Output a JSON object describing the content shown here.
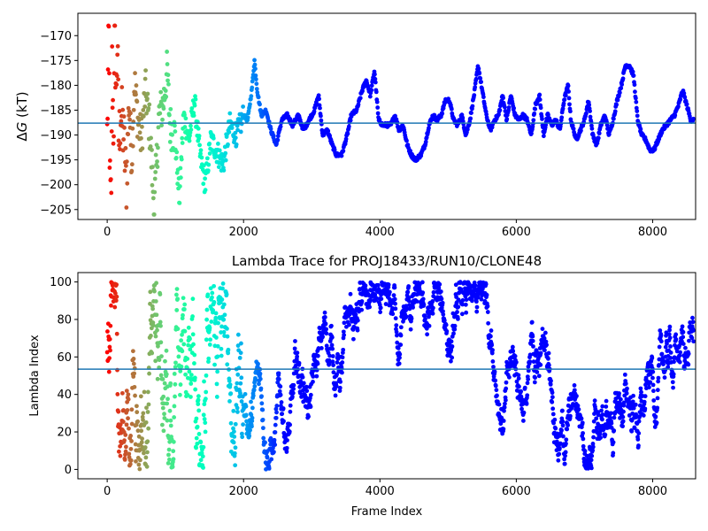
{
  "chart_data": [
    {
      "type": "scatter",
      "title": "",
      "xlabel": "",
      "ylabel": "ΔG (kT)",
      "xlim": [
        -430,
        8630
      ],
      "ylim": [
        -207,
        -165.5
      ],
      "xticks": [
        0,
        2000,
        4000,
        6000,
        8000
      ],
      "xtick_labels": [
        "0",
        "2000",
        "4000",
        "6000",
        "8000"
      ],
      "yticks": [
        -170,
        -175,
        -180,
        -185,
        -190,
        -195,
        -200,
        -205
      ],
      "ytick_labels": [
        "−170",
        "−175",
        "−180",
        "−185",
        "−190",
        "−195",
        "−200",
        "−205"
      ],
      "hline": -187.6,
      "hline_color": "#1f77b4",
      "colormap": "rainbow (red → violet with frame index)",
      "series_points": [
        [
          0,
          -190
        ],
        [
          10,
          -180
        ],
        [
          25,
          -170
        ],
        [
          40,
          -200
        ],
        [
          60,
          -205
        ],
        [
          70,
          -175
        ],
        [
          90,
          -188
        ],
        [
          100,
          -185
        ],
        [
          110,
          -168
        ],
        [
          130,
          -182
        ],
        [
          150,
          -172
        ],
        [
          170,
          -192
        ],
        [
          200,
          -185
        ],
        [
          240,
          -190
        ],
        [
          280,
          -200
        ],
        [
          320,
          -183
        ],
        [
          360,
          -195
        ],
        [
          400,
          -179
        ],
        [
          450,
          -187
        ],
        [
          500,
          -191
        ],
        [
          560,
          -181
        ],
        [
          620,
          -188
        ],
        [
          690,
          -205
        ],
        [
          760,
          -186
        ],
        [
          820,
          -184
        ],
        [
          880,
          -177
        ],
        [
          920,
          -188
        ],
        [
          990,
          -190
        ],
        [
          1060,
          -203
        ],
        [
          1120,
          -186
        ],
        [
          1200,
          -191
        ],
        [
          1280,
          -183
        ],
        [
          1360,
          -194
        ],
        [
          1440,
          -200
        ],
        [
          1520,
          -191
        ],
        [
          1600,
          -193
        ],
        [
          1700,
          -196
        ],
        [
          1800,
          -188
        ],
        [
          1900,
          -190
        ],
        [
          2000,
          -186
        ],
        [
          2060,
          -187
        ],
        [
          2120,
          -181
        ],
        [
          2160,
          -175
        ],
        [
          2200,
          -181
        ],
        [
          2260,
          -186
        ],
        [
          2330,
          -185
        ],
        [
          2400,
          -189
        ],
        [
          2480,
          -192
        ],
        [
          2560,
          -187
        ],
        [
          2640,
          -186
        ],
        [
          2720,
          -188
        ],
        [
          2800,
          -186
        ],
        [
          2880,
          -189
        ],
        [
          2960,
          -187
        ],
        [
          3040,
          -185
        ],
        [
          3100,
          -182
        ],
        [
          3160,
          -190
        ],
        [
          3230,
          -189
        ],
        [
          3300,
          -192
        ],
        [
          3360,
          -194
        ],
        [
          3440,
          -194
        ],
        [
          3520,
          -190
        ],
        [
          3580,
          -186
        ],
        [
          3660,
          -185
        ],
        [
          3740,
          -181
        ],
        [
          3800,
          -179
        ],
        [
          3860,
          -182
        ],
        [
          3920,
          -177
        ],
        [
          3980,
          -187
        ],
        [
          4040,
          -188
        ],
        [
          4100,
          -188
        ],
        [
          4160,
          -188
        ],
        [
          4220,
          -186
        ],
        [
          4280,
          -189
        ],
        [
          4340,
          -188
        ],
        [
          4400,
          -192
        ],
        [
          4460,
          -194
        ],
        [
          4520,
          -195
        ],
        [
          4600,
          -194
        ],
        [
          4660,
          -192
        ],
        [
          4720,
          -188
        ],
        [
          4780,
          -186
        ],
        [
          4840,
          -187
        ],
        [
          4900,
          -186
        ],
        [
          4960,
          -183
        ],
        [
          5020,
          -183
        ],
        [
          5080,
          -187
        ],
        [
          5140,
          -188
        ],
        [
          5200,
          -186
        ],
        [
          5260,
          -190
        ],
        [
          5320,
          -187
        ],
        [
          5380,
          -182
        ],
        [
          5440,
          -176
        ],
        [
          5500,
          -181
        ],
        [
          5560,
          -186
        ],
        [
          5620,
          -189
        ],
        [
          5680,
          -187
        ],
        [
          5740,
          -186
        ],
        [
          5800,
          -182
        ],
        [
          5860,
          -187
        ],
        [
          5920,
          -182
        ],
        [
          5980,
          -186
        ],
        [
          6040,
          -187
        ],
        [
          6100,
          -186
        ],
        [
          6160,
          -187
        ],
        [
          6220,
          -190
        ],
        [
          6280,
          -184
        ],
        [
          6340,
          -182
        ],
        [
          6400,
          -190
        ],
        [
          6460,
          -186
        ],
        [
          6520,
          -188
        ],
        [
          6580,
          -187
        ],
        [
          6640,
          -189
        ],
        [
          6700,
          -183
        ],
        [
          6760,
          -180
        ],
        [
          6800,
          -187
        ],
        [
          6880,
          -191
        ],
        [
          6940,
          -189
        ],
        [
          7000,
          -187
        ],
        [
          7060,
          -183
        ],
        [
          7120,
          -190
        ],
        [
          7180,
          -192
        ],
        [
          7240,
          -188
        ],
        [
          7300,
          -186
        ],
        [
          7360,
          -190
        ],
        [
          7420,
          -187
        ],
        [
          7480,
          -183
        ],
        [
          7540,
          -180
        ],
        [
          7600,
          -176
        ],
        [
          7660,
          -176
        ],
        [
          7720,
          -178
        ],
        [
          7780,
          -187
        ],
        [
          7840,
          -190
        ],
        [
          7900,
          -191
        ],
        [
          7960,
          -193
        ],
        [
          8020,
          -193
        ],
        [
          8080,
          -191
        ],
        [
          8140,
          -189
        ],
        [
          8200,
          -188
        ],
        [
          8260,
          -187
        ],
        [
          8320,
          -186
        ],
        [
          8380,
          -184
        ],
        [
          8440,
          -181
        ],
        [
          8500,
          -184
        ],
        [
          8560,
          -187
        ],
        [
          8600,
          -187
        ]
      ]
    },
    {
      "type": "scatter",
      "title": "Lambda Trace for PROJ18433/RUN10/CLONE48",
      "xlabel": "Frame Index",
      "ylabel": "Lambda Index",
      "xlim": [
        -430,
        8630
      ],
      "ylim": [
        -5,
        105
      ],
      "xticks": [
        0,
        2000,
        4000,
        6000,
        8000
      ],
      "xtick_labels": [
        "0",
        "2000",
        "4000",
        "6000",
        "8000"
      ],
      "yticks": [
        0,
        20,
        40,
        60,
        80,
        100
      ],
      "ytick_labels": [
        "0",
        "20",
        "40",
        "60",
        "80",
        "100"
      ],
      "hline": 53.5,
      "hline_color": "#1f77b4",
      "colormap": "rainbow (red → violet with frame index)",
      "y_range_of_points": [
        0,
        100
      ]
    }
  ]
}
